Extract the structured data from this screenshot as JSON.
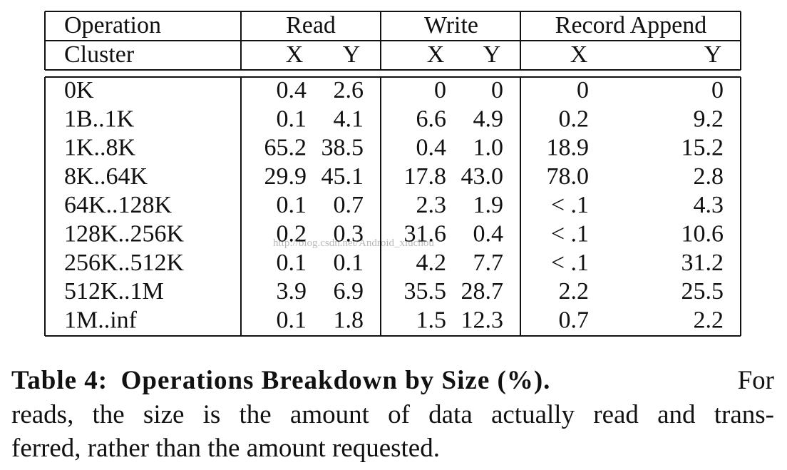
{
  "table": {
    "header": [
      [
        "Operation",
        "Read",
        "Write",
        "Record Append"
      ],
      [
        "Cluster",
        "X",
        "Y",
        "X",
        "Y",
        "X",
        "Y"
      ]
    ],
    "rows": [
      [
        "0K",
        "0.4",
        "2.6",
        "0",
        "0",
        "0",
        "0"
      ],
      [
        "1B..1K",
        "0.1",
        "4.1",
        "6.6",
        "4.9",
        "0.2",
        "9.2"
      ],
      [
        "1K..8K",
        "65.2",
        "38.5",
        "0.4",
        "1.0",
        "18.9",
        "15.2"
      ],
      [
        "8K..64K",
        "29.9",
        "45.1",
        "17.8",
        "43.0",
        "78.0",
        "2.8"
      ],
      [
        "64K..128K",
        "0.1",
        "0.7",
        "2.3",
        "1.9",
        "< .1",
        "4.3"
      ],
      [
        "128K..256K",
        "0.2",
        "0.3",
        "31.6",
        "0.4",
        "< .1",
        "10.6"
      ],
      [
        "256K..512K",
        "0.1",
        "0.1",
        "4.2",
        "7.7",
        "< .1",
        "31.2"
      ],
      [
        "512K..1M",
        "3.9",
        "6.9",
        "35.5",
        "28.7",
        "2.2",
        "25.5"
      ],
      [
        "1M..inf",
        "0.1",
        "1.8",
        "1.5",
        "12.3",
        "0.7",
        "2.2"
      ]
    ]
  },
  "watermark": "http://blog.csdn.net/Android_xiuchou",
  "caption": {
    "label": "Table 4:",
    "title": "Operations Breakdown by Size (%).",
    "lines": [
      "For",
      "reads, the size is the amount of data actually read and trans-",
      "ferred, rather than the amount requested."
    ]
  }
}
